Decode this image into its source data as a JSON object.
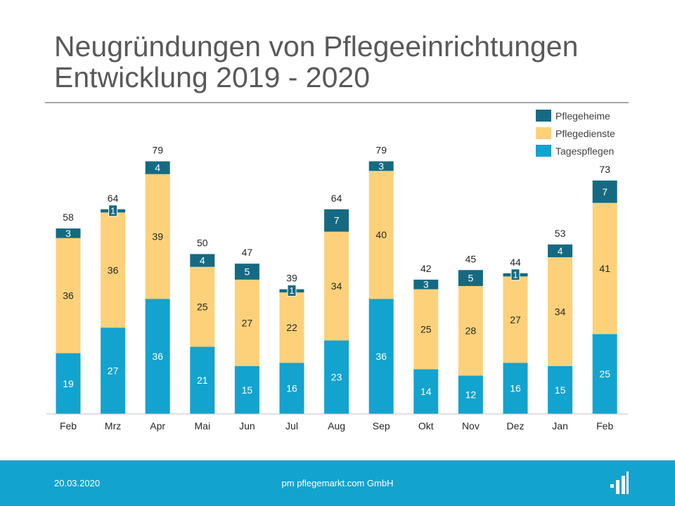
{
  "title": {
    "line1": "Neugründungen von Pflegeeinrichtungen",
    "line2": "Entwicklung 2019 - 2020"
  },
  "colors": {
    "pflegeheime": "#156a82",
    "pflegedienste": "#fdd17a",
    "tagespflegen": "#13a3cf",
    "footer": "#13a3cf",
    "title": "#595959"
  },
  "chart_data": {
    "type": "bar",
    "stacked": true,
    "title": "Neugründungen von Pflegeeinrichtungen Entwicklung 2019 - 2020",
    "xlabel": "",
    "ylabel": "",
    "ylim": [
      0,
      90
    ],
    "grid": false,
    "legend_position": "top-right",
    "categories": [
      "Feb",
      "Mrz",
      "Apr",
      "Mai",
      "Jun",
      "Jul",
      "Aug",
      "Sep",
      "Okt",
      "Nov",
      "Dez",
      "Jan",
      "Feb"
    ],
    "series": [
      {
        "name": "Tagespflegen",
        "color": "#13a3cf",
        "values": [
          19,
          27,
          36,
          21,
          15,
          16,
          23,
          36,
          14,
          12,
          16,
          15,
          25
        ]
      },
      {
        "name": "Pflegedienste",
        "color": "#fdd17a",
        "values": [
          36,
          36,
          39,
          25,
          27,
          22,
          34,
          40,
          25,
          28,
          27,
          34,
          41
        ]
      },
      {
        "name": "Pflegeheime",
        "color": "#156a82",
        "values": [
          3,
          1,
          4,
          4,
          5,
          1,
          7,
          3,
          3,
          5,
          1,
          4,
          7
        ]
      }
    ],
    "totals": [
      58,
      64,
      79,
      50,
      47,
      39,
      64,
      79,
      42,
      45,
      44,
      53,
      73
    ],
    "legend": [
      "Pflegeheime",
      "Pflegedienste",
      "Tagespflegen"
    ]
  },
  "footer": {
    "date": "20.03.2020",
    "company": "pm pflegemarkt.com GmbH",
    "logo_icon": "pflegemarkt-logo-icon"
  }
}
